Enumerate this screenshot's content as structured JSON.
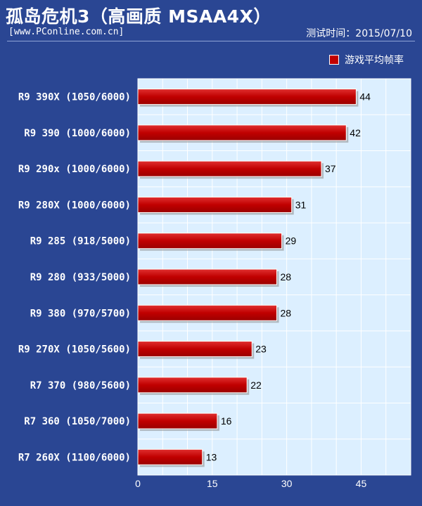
{
  "header": {
    "title": "孤岛危机3（高画质 MSAA4X）",
    "site": "[www.PConline.com.cn]",
    "date": "测试时间：2015/07/10"
  },
  "legend": {
    "label": "游戏平均帧率",
    "color": "#c00000"
  },
  "chart_data": {
    "type": "bar",
    "orientation": "horizontal",
    "title": "孤岛危机3（高画质 MSAA4X）",
    "xlabel": "",
    "ylabel": "",
    "xlim": [
      0,
      55
    ],
    "xticks": [
      0,
      15,
      30,
      45
    ],
    "grid": true,
    "legend_position": "top-right",
    "categories": [
      "R9 390X (1050/6000)",
      "R9 390 (1000/6000)",
      "R9 290x (1000/6000)",
      "R9 280X (1000/6000)",
      "R9 285 (918/5000)",
      "R9 280 (933/5000)",
      "R9 380 (970/5700)",
      "R9 270X (1050/5600)",
      "R7 370 (980/5600)",
      "R7 360 (1050/7000)",
      "R7 260X (1100/6000)"
    ],
    "series": [
      {
        "name": "游戏平均帧率",
        "color": "#c00000",
        "values": [
          44,
          42,
          37,
          31,
          29,
          28,
          28,
          23,
          22,
          16,
          13
        ]
      }
    ]
  }
}
